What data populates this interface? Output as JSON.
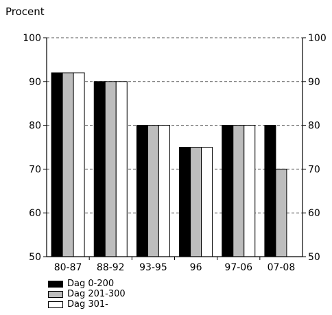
{
  "chart_data": {
    "type": "bar",
    "ylabel": "Procent",
    "categories": [
      "80-87",
      "88-92",
      "93-95",
      "96",
      "97-06",
      "07-08"
    ],
    "series": [
      {
        "name": "Dag 0-200",
        "color": "#000000",
        "values": [
          92,
          90,
          80,
          75,
          80,
          80
        ]
      },
      {
        "name": "Dag 201-300",
        "color": "#bdbdbd",
        "values": [
          92,
          90,
          80,
          75,
          80,
          70
        ]
      },
      {
        "name": "Dag 301-",
        "color": "#ffffff",
        "values": [
          92,
          90,
          80,
          75,
          80,
          null
        ]
      }
    ],
    "ylim": [
      50,
      100
    ],
    "yticks": [
      50,
      60,
      70,
      80,
      90,
      100
    ],
    "grid": "dashed",
    "legend_position": "bottom-left"
  }
}
